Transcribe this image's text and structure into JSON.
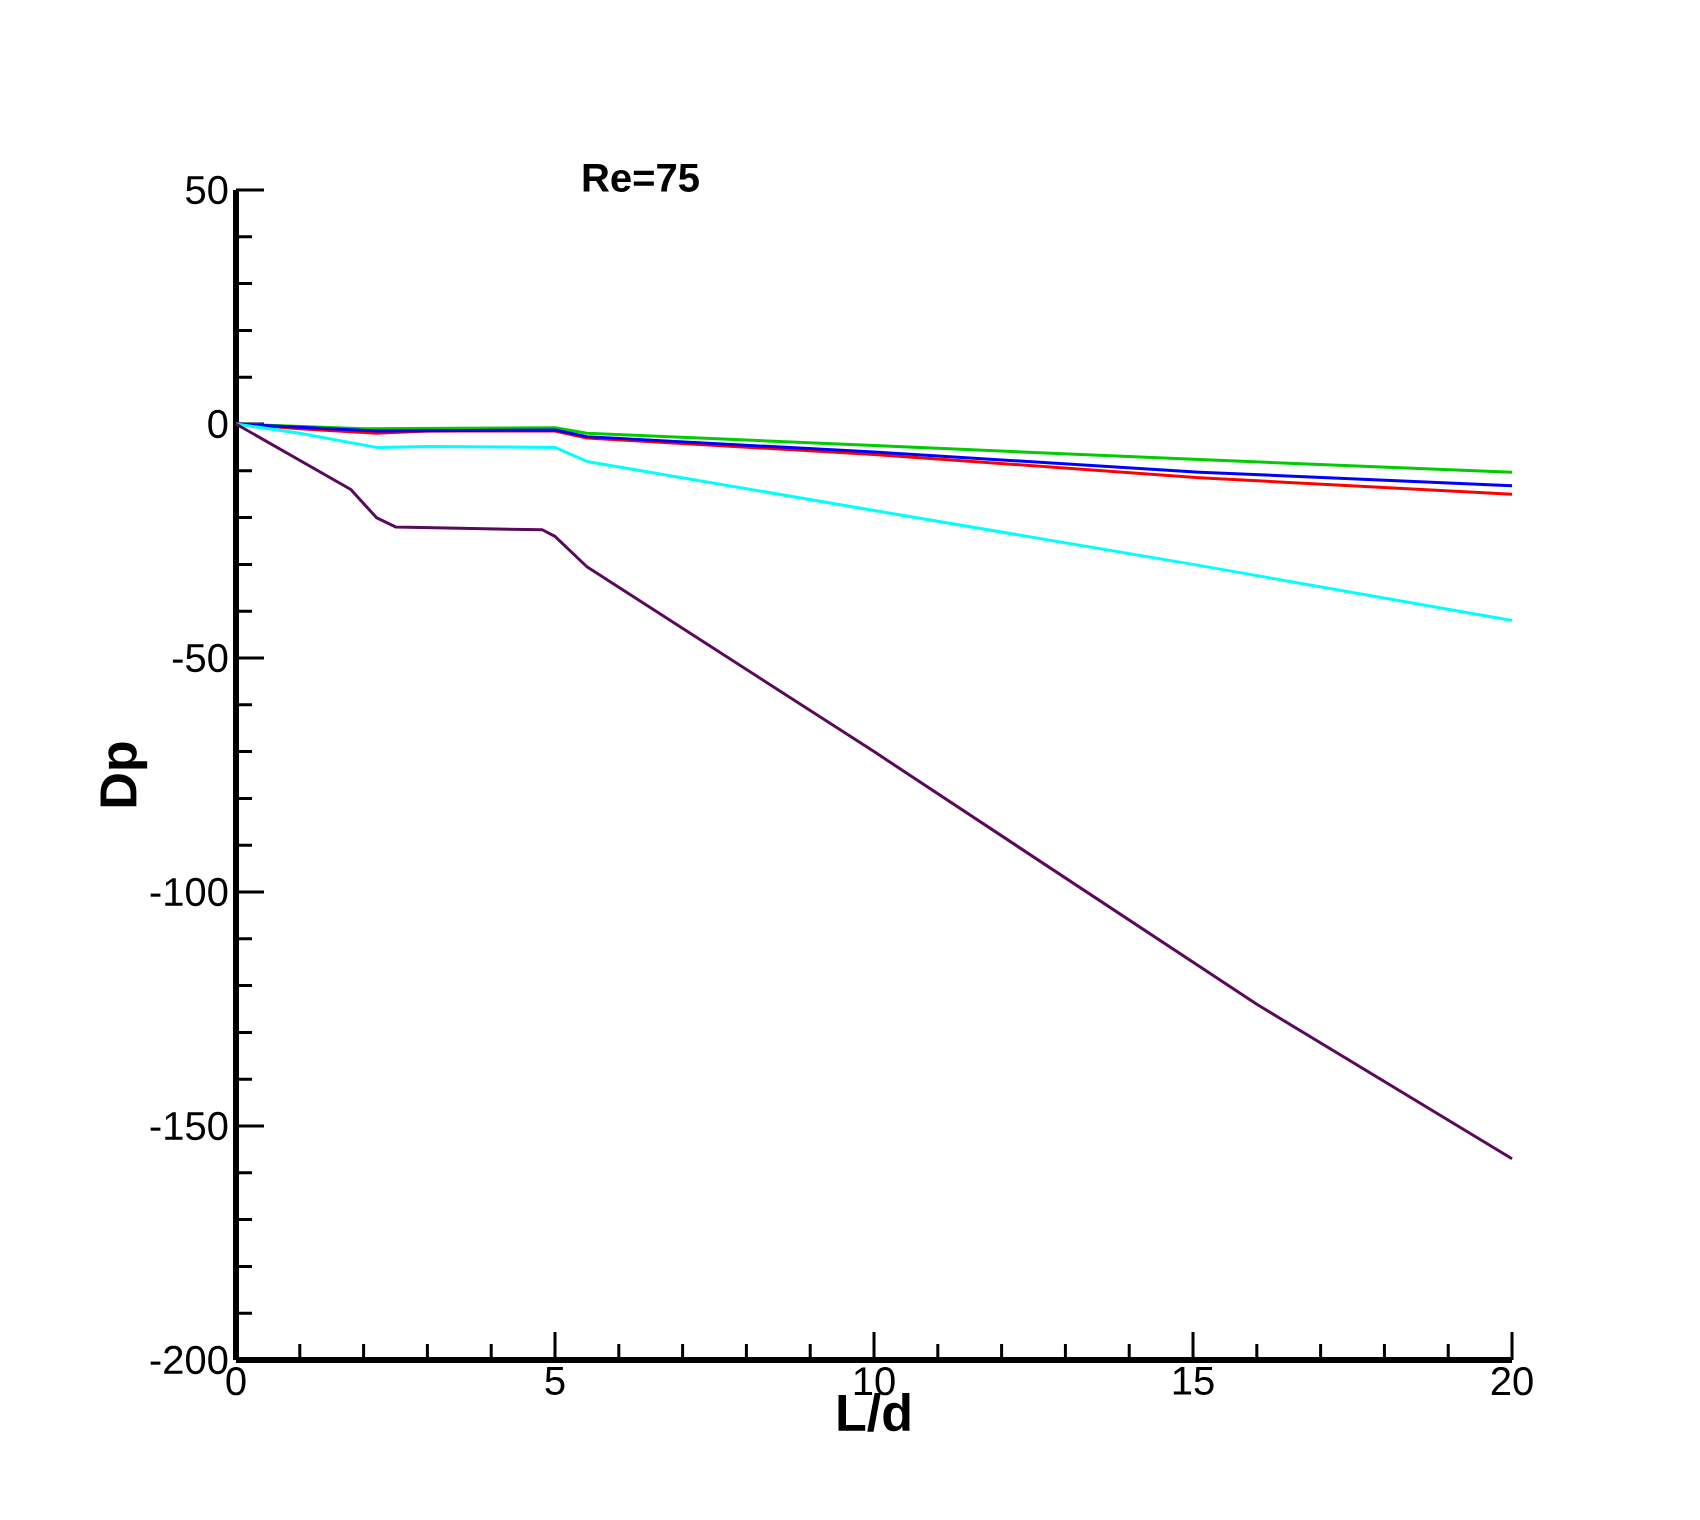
{
  "chart_data": {
    "type": "line",
    "title": "Re=75",
    "xlabel": "L/d",
    "ylabel": "Dp",
    "xlim": [
      0,
      20
    ],
    "ylim": [
      -200,
      50
    ],
    "xticks": [
      0,
      5,
      10,
      15,
      20
    ],
    "yticks": [
      -200,
      -150,
      -100,
      -50,
      0,
      50
    ],
    "series": [
      {
        "color": "#00cc00",
        "x": [
          0,
          2,
          5,
          5.5,
          10,
          15.1,
          20
        ],
        "values": [
          0,
          -1,
          -0.8,
          -2,
          -4.6,
          -7.6,
          -10.3
        ]
      },
      {
        "color": "#ff0000",
        "x": [
          0,
          1,
          2.2,
          3,
          5,
          5.5,
          10,
          15.1,
          20
        ],
        "values": [
          0,
          -1,
          -2,
          -1.5,
          -1.5,
          -3,
          -6.5,
          -11.5,
          -15
        ]
      },
      {
        "color": "#0000ff",
        "x": [
          0,
          2.2,
          5,
          5.5,
          10,
          15.1,
          20
        ],
        "values": [
          0,
          -1.5,
          -1.3,
          -2.7,
          -6,
          -10.3,
          -13.2
        ]
      },
      {
        "color": "#00ffff",
        "x": [
          0,
          1,
          2.2,
          3,
          5,
          5.5,
          10,
          15,
          20
        ],
        "values": [
          0,
          -2,
          -5,
          -4.8,
          -5,
          -8,
          -18.5,
          -30,
          -42
        ]
      },
      {
        "color": "#5a0a5a",
        "x": [
          0,
          1.8,
          2.2,
          2.5,
          3.5,
          4.8,
          5,
          5.5,
          10,
          16,
          20
        ],
        "values": [
          0,
          -14,
          -20,
          -22,
          -22.3,
          -22.6,
          -24,
          -30.5,
          -70,
          -124,
          -157
        ]
      }
    ]
  }
}
